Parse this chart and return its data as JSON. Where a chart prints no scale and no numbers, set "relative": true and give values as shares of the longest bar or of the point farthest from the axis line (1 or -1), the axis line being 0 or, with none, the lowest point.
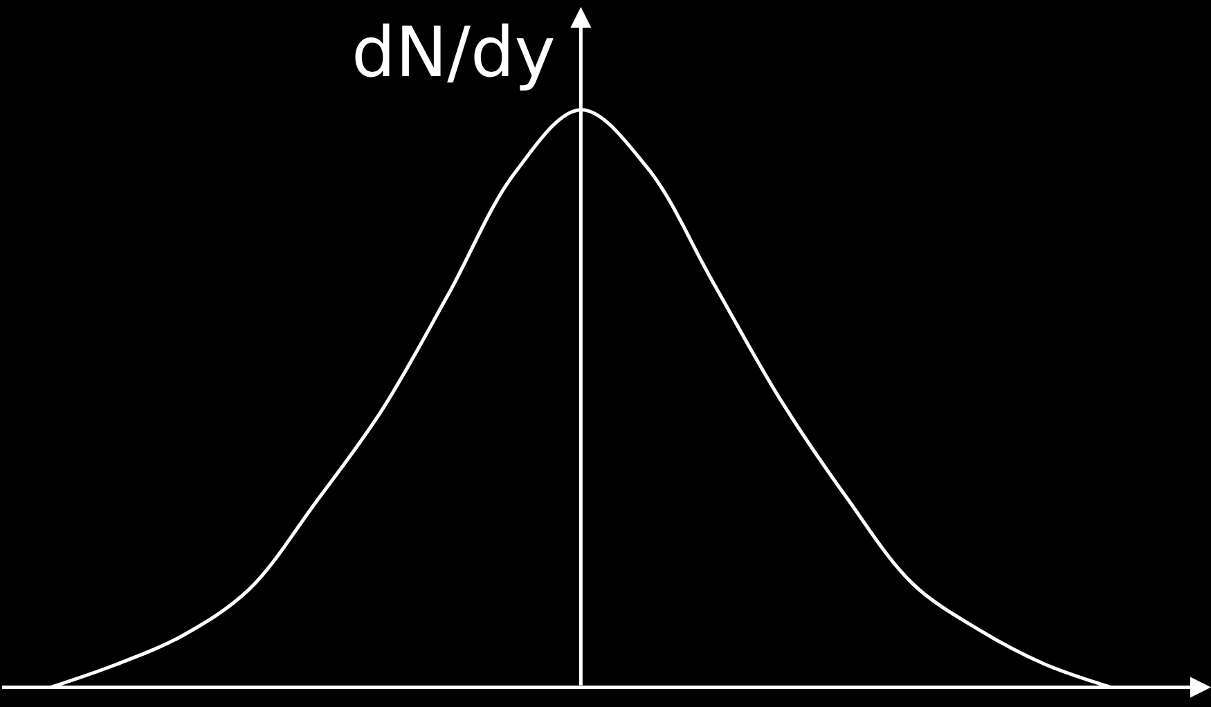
{
  "chart_data": {
    "type": "line",
    "relative": true,
    "ylabel": "dN/dy",
    "color": "#ffffff",
    "categories": [
      null,
      null,
      null,
      null,
      null,
      null,
      null,
      null,
      null,
      null,
      null,
      null,
      null,
      null,
      null,
      null,
      null
    ],
    "values": [
      0,
      0.04,
      0.09,
      0.17,
      0.32,
      0.48,
      0.68,
      0.89,
      1.0,
      0.9,
      0.7,
      0.5,
      0.33,
      0.18,
      0.1,
      0.04,
      0
    ]
  }
}
